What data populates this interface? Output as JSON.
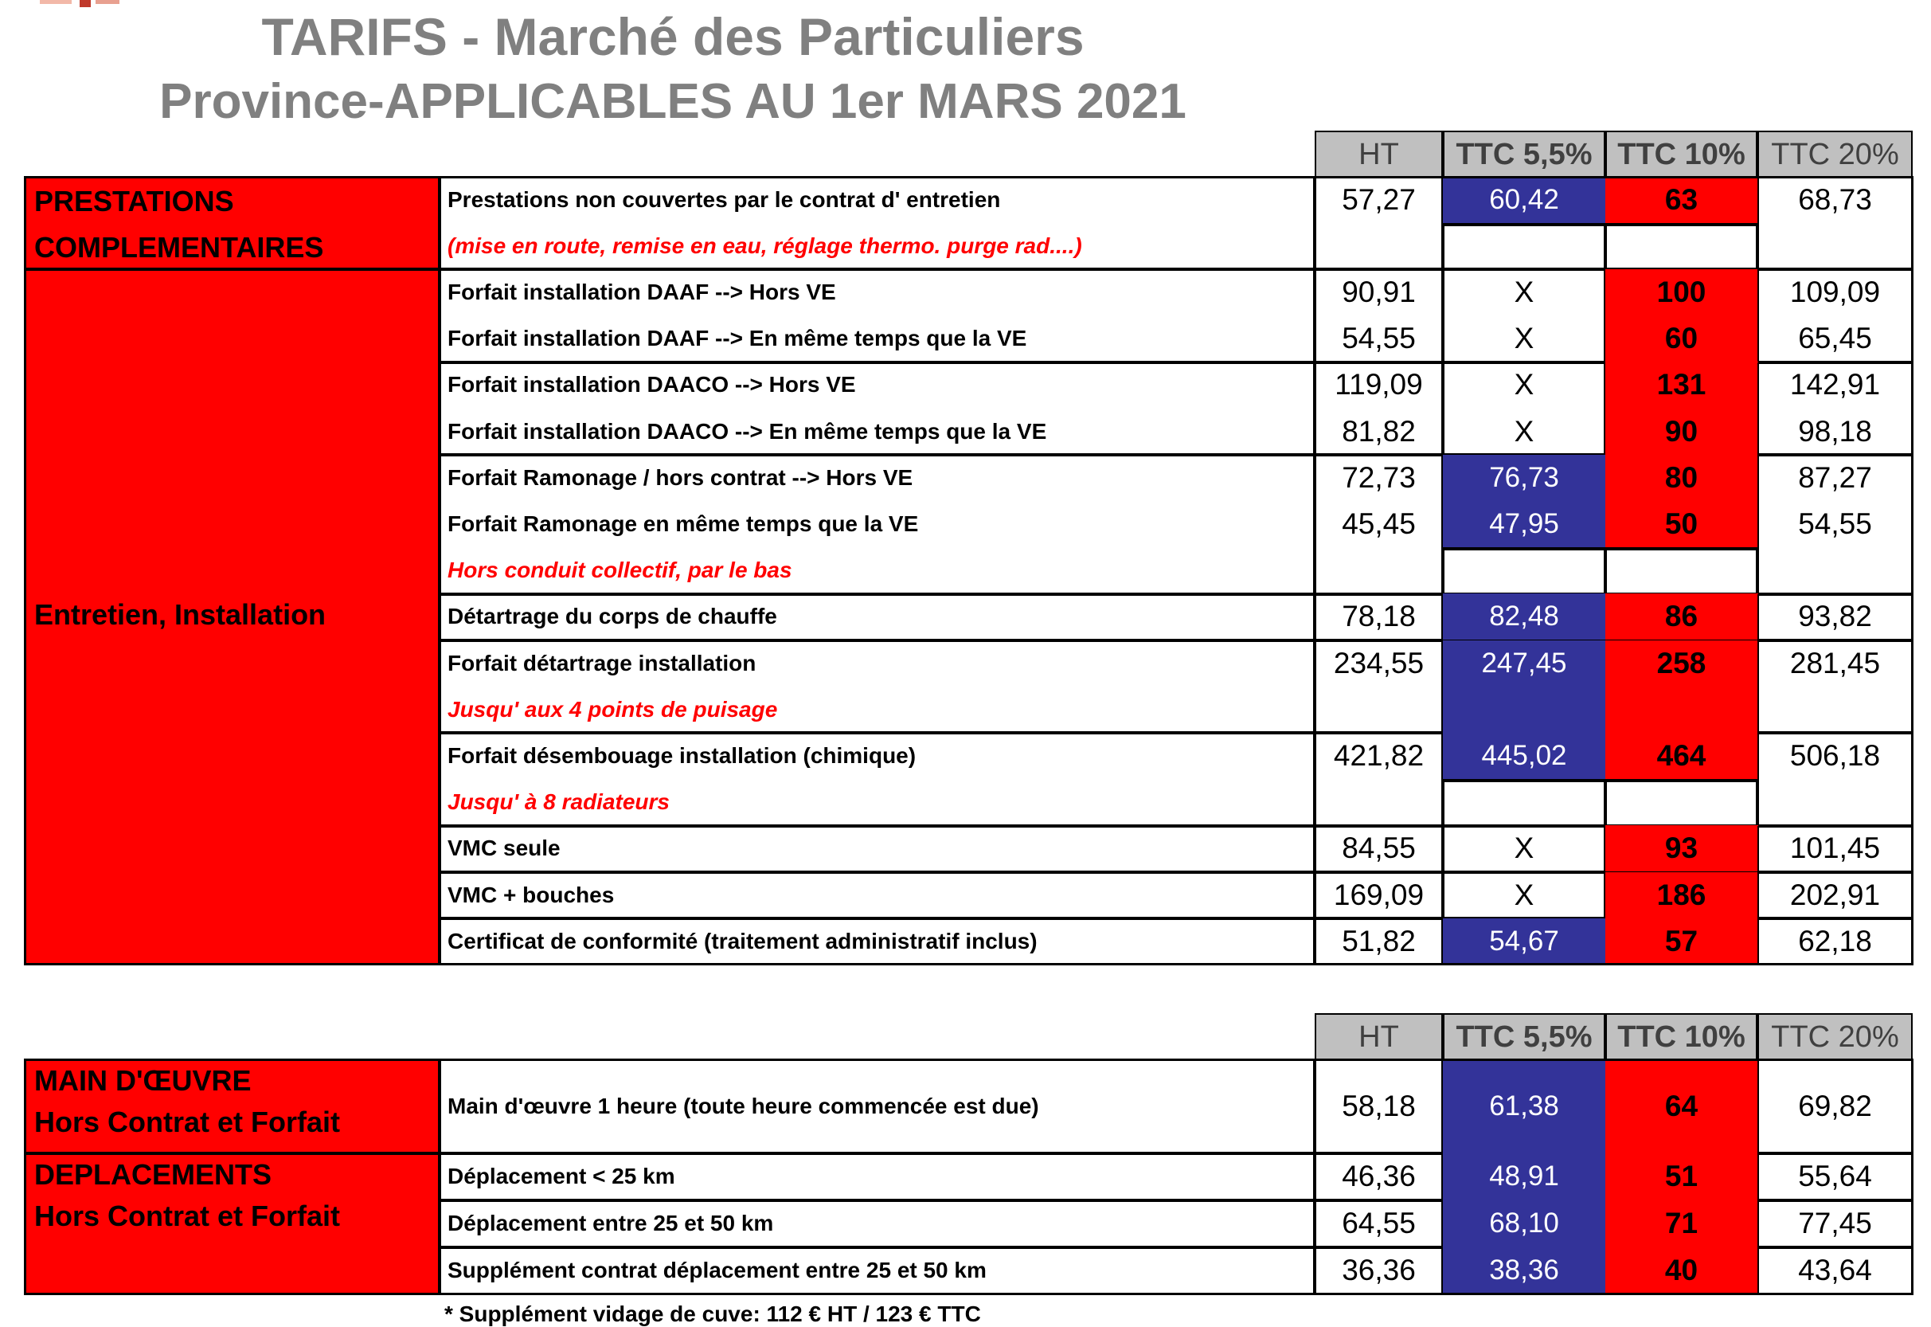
{
  "title": {
    "line1": "TARIFS - Marché des Particuliers",
    "line2": "Province-APPLICABLES AU 1er MARS 2021"
  },
  "colors": {
    "blue": "#333399",
    "red": "#ff0000",
    "header_gray": "#c0c0c0",
    "title_gray": "#808080"
  },
  "tables": [
    {
      "header": [
        "HT",
        "TTC 5,5%",
        "TTC 10%",
        "TTC 20%"
      ],
      "sections": [
        {
          "label": [
            "PRESTATIONS",
            "COMPLEMENTAIRES"
          ],
          "groups": [
            {
              "lines": [
                {
                  "text": "Prestations non couvertes par le contrat d' entretien",
                  "ht": "57,27",
                  "ttc55": "60,42",
                  "ttc10": "63",
                  "ttc20": "68,73"
                },
                {
                  "text": "(mise en route, remise en eau, réglage thermo. purge rad....)",
                  "note": true
                }
              ]
            }
          ]
        },
        {
          "label": [
            "Entretien, Installation"
          ],
          "groups": [
            {
              "lines": [
                {
                  "text": "Forfait installation DAAF --> Hors VE",
                  "ht": "90,91",
                  "ttc55": "X",
                  "ttc10": "100",
                  "ttc20": "109,09"
                },
                {
                  "text": "Forfait installation DAAF --> En même temps que la VE",
                  "ht": "54,55",
                  "ttc55": "X",
                  "ttc10": "60",
                  "ttc20": "65,45"
                }
              ]
            },
            {
              "lines": [
                {
                  "text": "Forfait installation DAACO --> Hors VE",
                  "ht": "119,09",
                  "ttc55": "X",
                  "ttc10": "131",
                  "ttc20": "142,91"
                },
                {
                  "text": "Forfait installation DAACO --> En même temps que la VE",
                  "ht": "81,82",
                  "ttc55": "X",
                  "ttc10": "90",
                  "ttc20": "98,18"
                }
              ]
            },
            {
              "lines": [
                {
                  "text": "Forfait Ramonage / hors contrat --> Hors VE",
                  "ht": "72,73",
                  "ttc55": "76,73",
                  "ttc10": "80",
                  "ttc20": "87,27"
                },
                {
                  "text": "Forfait Ramonage en même temps que la VE",
                  "ht": "45,45",
                  "ttc55": "47,95",
                  "ttc10": "50",
                  "ttc20": "54,55"
                },
                {
                  "text": "Hors conduit collectif, par le bas",
                  "note": true
                }
              ]
            },
            {
              "lines": [
                {
                  "text": "Détartrage du corps de chauffe",
                  "ht": "78,18",
                  "ttc55": "82,48",
                  "ttc10": "86",
                  "ttc20": "93,82"
                }
              ]
            },
            {
              "lines": [
                {
                  "text": "Forfait détartrage installation",
                  "ht": "234,55",
                  "ttc55": "247,45",
                  "ttc10": "258",
                  "ttc20": "281,45"
                },
                {
                  "text": "Jusqu' aux 4 points de puisage",
                  "note": true,
                  "highlight": true
                }
              ]
            },
            {
              "lines": [
                {
                  "text": "Forfait désembouage installation (chimique)",
                  "ht": "421,82",
                  "ttc55": "445,02",
                  "ttc10": "464",
                  "ttc20": "506,18"
                },
                {
                  "text": "Jusqu' à 8 radiateurs",
                  "note": true
                }
              ]
            },
            {
              "lines": [
                {
                  "text": "VMC seule",
                  "ht": "84,55",
                  "ttc55": "X",
                  "ttc10": "93",
                  "ttc20": "101,45"
                }
              ]
            },
            {
              "lines": [
                {
                  "text": "VMC + bouches",
                  "ht": "169,09",
                  "ttc55": "X",
                  "ttc10": "186",
                  "ttc20": "202,91"
                }
              ]
            },
            {
              "lines": [
                {
                  "text": "Certificat de conformité (traitement administratif inclus)",
                  "ht": "51,82",
                  "ttc55": "54,67",
                  "ttc10": "57",
                  "ttc20": "62,18"
                }
              ]
            }
          ]
        }
      ]
    },
    {
      "header": [
        "HT",
        "TTC 5,5%",
        "TTC 10%",
        "TTC 20%"
      ],
      "sections": [
        {
          "label": [
            "MAIN D'ŒUVRE",
            "Hors Contrat et Forfait"
          ],
          "groups": [
            {
              "lines": [
                {
                  "text": "Main d'œuvre 1 heure (toute heure commencée est due)",
                  "ht": "58,18",
                  "ttc55": "61,38",
                  "ttc10": "64",
                  "ttc20": "69,82"
                }
              ]
            }
          ]
        },
        {
          "label": [
            "DEPLACEMENTS",
            "Hors Contrat et Forfait"
          ],
          "groups": [
            {
              "lines": [
                {
                  "text": "Déplacement < 25 km",
                  "ht": "46,36",
                  "ttc55": "48,91",
                  "ttc10": "51",
                  "ttc20": "55,64"
                }
              ]
            },
            {
              "lines": [
                {
                  "text": "Déplacement entre 25 et 50 km",
                  "ht": "64,55",
                  "ttc55": "68,10",
                  "ttc10": "71",
                  "ttc20": "77,45"
                }
              ]
            },
            {
              "lines": [
                {
                  "text": "Supplément contrat déplacement entre 25 et 50 km",
                  "ht": "36,36",
                  "ttc55": "38,36",
                  "ttc10": "40",
                  "ttc20": "43,64"
                }
              ]
            }
          ]
        }
      ]
    }
  ],
  "footnote": "* Supplément vidage de cuve: 112 € HT / 123 € TTC"
}
